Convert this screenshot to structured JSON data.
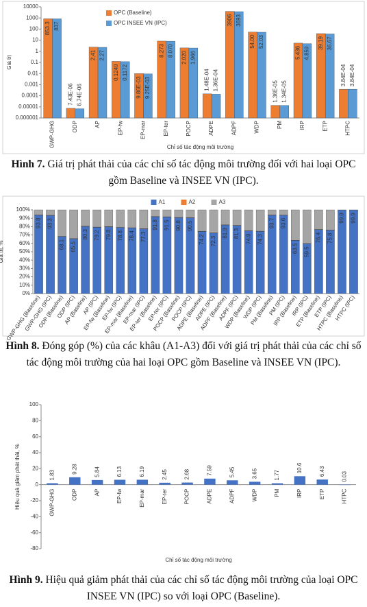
{
  "chart_data": [
    {
      "type": "bar",
      "log_scale": true,
      "legend": "top-left",
      "grid": false,
      "y_label": "Giá trị",
      "x_label": "Chỉ số tác động môi trường",
      "categories": [
        "GWP-GHG",
        "ODP",
        "AP",
        "EP-fw",
        "EP-mar",
        "EP-ter",
        "POCP",
        "ADPE",
        "ADPF",
        "WDP",
        "PM",
        "IRP",
        "ETP",
        "HTPC"
      ],
      "series": [
        {
          "name": "OPC (Baseline)",
          "color": "#ED7D31",
          "values": [
            853.3,
            7.43e-06,
            2.41,
            0.1249,
            0.00986,
            8.273,
            2.02,
            0.000148,
            3906,
            54,
            1.36e-05,
            5.436,
            39.19,
            0.000384
          ],
          "value_labels": [
            "853.3",
            "7.43E-06",
            "2.41",
            "0.1249",
            "9.86E-03",
            "8.273",
            "2.020",
            "1.48E-04",
            "3906",
            "54.00",
            "1.36E-05",
            "5.436",
            "39.19",
            "3.84E-04"
          ]
        },
        {
          "name": "OPC INSEE VN (IPC)",
          "color": "#5B9BD5",
          "values": [
            837,
            6.74e-06,
            2.27,
            0.1172,
            0.00925,
            8.07,
            1.966,
            0.000136,
            3693,
            52.03,
            1.34e-05,
            4.859,
            36.67,
            0.000384
          ],
          "value_labels": [
            "837",
            "6.74E-06",
            "2.27",
            "0.1172",
            "9.25E-03",
            "8.070",
            "1.966",
            "1.36E-04",
            "3693",
            "52.03",
            "1.34E-05",
            "4.859",
            "36.67",
            "3.84E-04"
          ]
        }
      ],
      "ylim": [
        1e-06,
        10000
      ],
      "yticks": [
        1e-06,
        1e-05,
        0.0001,
        0.001,
        0.01,
        0.1,
        1,
        10,
        100,
        1000,
        10000
      ]
    },
    {
      "type": "bar",
      "stacked": true,
      "legend": "top",
      "grid": false,
      "y_label": "Giá trị, %",
      "categories": [
        "GWP-GHG (Baseline)",
        "GWP-GHG (IPC)",
        "ODP (Baseline)",
        "ODP (IPC)",
        "AP (Baseline)",
        "AP (IPC)",
        "EP-fw (Baseline)",
        "EP-fw (IPC)",
        "EP-mar (Baseline)",
        "EP-mar (IPC)",
        "EP-ter (Baseline)",
        "EP-ter (IPC)",
        "POCP (Baseline)",
        "POCP (IPC)",
        "ADPE (Baseline)",
        "ADPE (IPC)",
        "ADPF (Baseline)",
        "ADPF (IPC)",
        "WDP (Baseline)",
        "WDP (IPC)",
        "PM (Baseline)",
        "PM (IPC)",
        "IRP (Baseline)",
        "IRP (IPC)",
        "ETP (Baseline)",
        "ETP (IPC)",
        "HTPC (Baseline)",
        "HTPC (IPC)"
      ],
      "series": [
        {
          "name": "A1",
          "color": "#4472C4",
          "show_labels": true,
          "values": [
            93.8,
            93.3,
            68.1,
            65.5,
            80.3,
            79.2,
            79.8,
            78.8,
            78.4,
            77.3,
            91.8,
            91.5,
            90.8,
            90.5,
            74.2,
            72.3,
            81.9,
            81.3,
            74.9,
            74.3,
            93.7,
            93.6,
            63.5,
            59.5,
            76.4,
            75.8,
            99.9,
            99.9
          ]
        },
        {
          "name": "A2",
          "color": "#ED7D31",
          "values": [
            0.3,
            0.3,
            0.3,
            0.3,
            0.3,
            0.3,
            0.3,
            0.3,
            0.3,
            0.3,
            0.3,
            0.3,
            0.3,
            0.3,
            0.3,
            0.3,
            0.3,
            0.3,
            0.3,
            0.3,
            0.3,
            0.3,
            0.3,
            0.3,
            0.3,
            0.3,
            0,
            0
          ]
        },
        {
          "name": "A3",
          "color": "#A5A5A5",
          "values": [
            5.9,
            6.4,
            31.6,
            34.2,
            19.4,
            20.5,
            19.9,
            20.9,
            21.3,
            22.4,
            7.9,
            8.2,
            8.9,
            9.2,
            25.5,
            27.4,
            17.8,
            18.4,
            24.8,
            25.4,
            6,
            6.1,
            36.2,
            40.2,
            23.3,
            23.9,
            0.1,
            0.1
          ]
        }
      ],
      "ylim": [
        0,
        100
      ],
      "yticks": [
        {
          "value": 0,
          "label": "0%"
        },
        {
          "value": 10,
          "label": "10%"
        },
        {
          "value": 20,
          "label": "20%"
        },
        {
          "value": 30,
          "label": "30%"
        },
        {
          "value": 40,
          "label": "40%"
        },
        {
          "value": 50,
          "label": "50%"
        },
        {
          "value": 60,
          "label": "60%"
        },
        {
          "value": 70,
          "label": "70%"
        },
        {
          "value": 80,
          "label": "80%"
        },
        {
          "value": 90,
          "label": "90%"
        },
        {
          "value": 100,
          "label": "100%"
        }
      ]
    },
    {
      "type": "bar",
      "grid": false,
      "y_label": "Hiệu quả giảm phát thải, %",
      "x_label": "Chỉ số tác động môi trường",
      "categories": [
        "GWP-GHG",
        "ODP",
        "AP",
        "EP-fw",
        "EP-mar",
        "EP-ter",
        "POCP",
        "ADPE",
        "ADPF",
        "WDP",
        "PM",
        "IRP",
        "ETP",
        "HTPC"
      ],
      "values": [
        1.83,
        9.28,
        5.84,
        6.13,
        6.19,
        2.45,
        2.68,
        7.59,
        5.45,
        3.65,
        1.77,
        10.6,
        6.43,
        0.03
      ],
      "color": "#4472C4",
      "ylim": [
        -80,
        100
      ],
      "yticks": [
        -80,
        -60,
        -40,
        -20,
        0,
        20,
        40,
        60,
        80,
        100
      ]
    }
  ],
  "captions": [
    {
      "label": "Hình 7.",
      "text": "Giá trị phát thải của các chỉ số tác động môi trường đối với hai loại OPC gồm Baseline và INSEE VN (IPC)."
    },
    {
      "label": "Hình 8.",
      "text": "Đóng góp (%) của các khâu (A1-A3) đối với giá trị phát thải của các chỉ số tác động môi trường của hai loại OPC gồm Baseline và INSEE VN (IPC)."
    },
    {
      "label": "Hình 9.",
      "text": "Hiệu quả giảm phát thải của các chỉ số tác động môi trường của loại OPC INSEE VN (IPC) so với loại OPC (Baseline)."
    }
  ]
}
